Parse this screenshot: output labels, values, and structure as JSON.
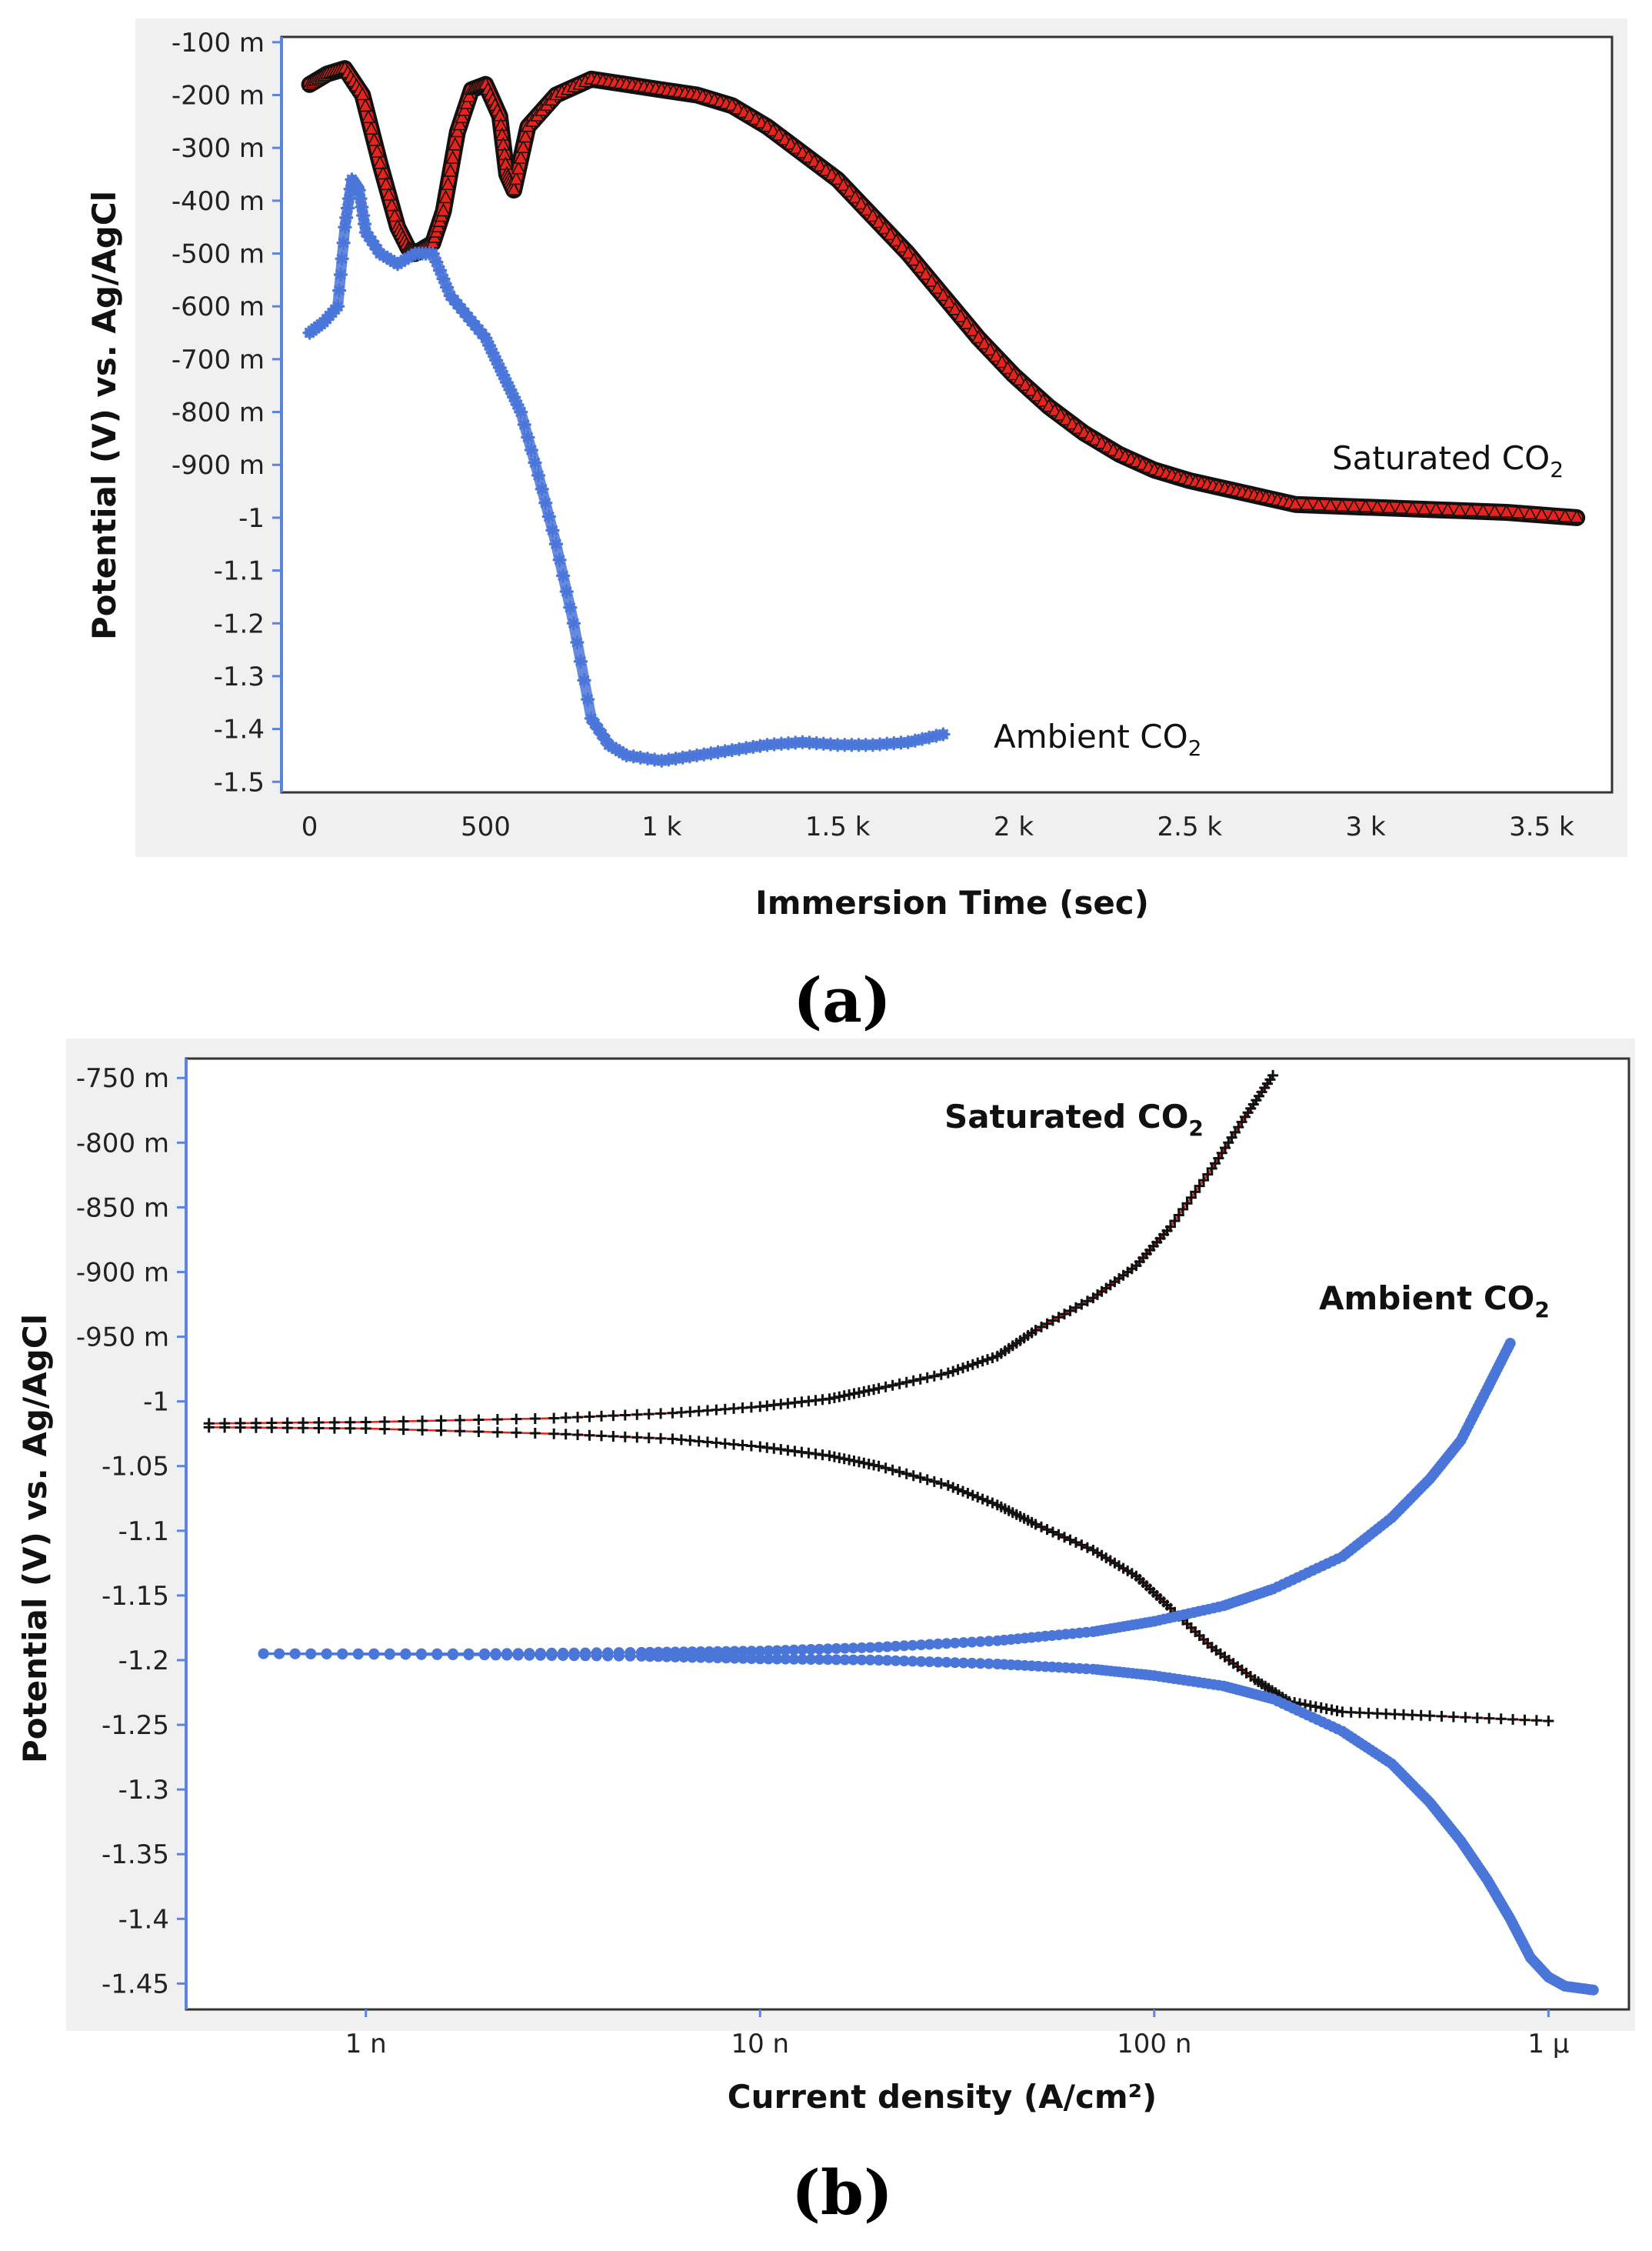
{
  "chart_data": [
    {
      "type": "line",
      "panel_label": "a",
      "panel_label_paren_open": "(",
      "panel_label_paren_close": ")",
      "xlabel": "Immersion Time (sec)",
      "ylabel": "Potential (V) vs. Ag/AgCl",
      "xlim": [
        -80,
        3700
      ],
      "ylim": [
        -1.52,
        -0.09
      ],
      "x_ticks": [
        0,
        500,
        1000,
        1500,
        2000,
        2500,
        3000,
        3500
      ],
      "x_tick_labels": [
        "0",
        "500",
        "1 k",
        "1.5 k",
        "2 k",
        "2.5 k",
        "3 k",
        "3.5 k"
      ],
      "y_ticks": [
        -0.1,
        -0.2,
        -0.3,
        -0.4,
        -0.5,
        -0.6,
        -0.7,
        -0.8,
        -0.9,
        -1.0,
        -1.1,
        -1.2,
        -1.3,
        -1.4,
        -1.5
      ],
      "y_tick_labels": [
        "-100 m",
        "-200 m",
        "-300 m",
        "-400 m",
        "-500 m",
        "-600 m",
        "-700 m",
        "-800 m",
        "-900 m",
        "-1",
        "-1.1",
        "-1.2",
        "-1.3",
        "-1.4",
        "-1.5"
      ],
      "series": [
        {
          "name": "Saturated CO2",
          "label_text": "Saturated CO",
          "label_sub": "2",
          "color": "#e8231b",
          "outline": "#111111",
          "x": [
            0,
            50,
            100,
            150,
            200,
            250,
            280,
            300,
            350,
            380,
            420,
            460,
            500,
            540,
            560,
            580,
            620,
            700,
            800,
            900,
            1000,
            1100,
            1200,
            1300,
            1400,
            1500,
            1600,
            1700,
            1800,
            1900,
            2000,
            2100,
            2200,
            2300,
            2400,
            2500,
            2600,
            2700,
            2800,
            3000,
            3200,
            3400,
            3600
          ],
          "values": [
            -0.18,
            -0.16,
            -0.15,
            -0.2,
            -0.33,
            -0.45,
            -0.49,
            -0.5,
            -0.48,
            -0.42,
            -0.27,
            -0.19,
            -0.18,
            -0.24,
            -0.35,
            -0.38,
            -0.26,
            -0.2,
            -0.17,
            -0.18,
            -0.19,
            -0.2,
            -0.22,
            -0.26,
            -0.31,
            -0.36,
            -0.43,
            -0.5,
            -0.58,
            -0.66,
            -0.73,
            -0.79,
            -0.84,
            -0.88,
            -0.91,
            -0.93,
            -0.945,
            -0.96,
            -0.975,
            -0.98,
            -0.985,
            -0.99,
            -1.0
          ]
        },
        {
          "name": "Ambient CO2",
          "label_text": "Ambient CO",
          "label_sub": "2",
          "color": "#4a76d9",
          "x": [
            0,
            40,
            80,
            100,
            120,
            140,
            160,
            200,
            250,
            300,
            350,
            400,
            450,
            500,
            550,
            600,
            650,
            700,
            750,
            800,
            850,
            900,
            1000,
            1100,
            1200,
            1300,
            1400,
            1500,
            1600,
            1700,
            1800
          ],
          "values": [
            -0.65,
            -0.63,
            -0.6,
            -0.45,
            -0.36,
            -0.38,
            -0.46,
            -0.5,
            -0.52,
            -0.5,
            -0.5,
            -0.58,
            -0.62,
            -0.66,
            -0.73,
            -0.8,
            -0.92,
            -1.05,
            -1.2,
            -1.38,
            -1.43,
            -1.45,
            -1.46,
            -1.45,
            -1.44,
            -1.43,
            -1.425,
            -1.43,
            -1.43,
            -1.425,
            -1.41
          ]
        }
      ]
    },
    {
      "type": "line",
      "panel_label": "b",
      "panel_label_paren_open": "(",
      "panel_label_paren_close": ")",
      "xlabel": "Current density (A/cm²)",
      "ylabel": "Potential (V) vs. Ag/AgCl",
      "x_scale": "log",
      "xlim": [
        3.5e-10,
        1.6e-06
      ],
      "ylim": [
        -1.47,
        -0.735
      ],
      "x_ticks": [
        1e-09,
        1e-08,
        1e-07,
        1e-06
      ],
      "x_tick_labels": [
        "1 n",
        "10 n",
        "100 n",
        "1 µ"
      ],
      "y_ticks": [
        -0.75,
        -0.8,
        -0.85,
        -0.9,
        -0.95,
        -1.0,
        -1.05,
        -1.1,
        -1.15,
        -1.2,
        -1.25,
        -1.3,
        -1.35,
        -1.4,
        -1.45
      ],
      "y_tick_labels": [
        "-750 m",
        "-800 m",
        "-850 m",
        "-900 m",
        "-950 m",
        "-1",
        "-1.05",
        "-1.1",
        "-1.15",
        "-1.2",
        "-1.25",
        "-1.3",
        "-1.35",
        "-1.4",
        "-1.45"
      ],
      "series": [
        {
          "name": "Saturated CO2 anodic",
          "label_text": "Saturated CO",
          "label_sub": "2",
          "color": "#111111",
          "line_color": "#e8231b",
          "x": [
            4e-10,
            1e-09,
            3e-09,
            6e-09,
            1e-08,
            1.5e-08,
            2e-08,
            3e-08,
            4e-08,
            5e-08,
            7e-08,
            9e-08,
            1.1e-07,
            1.4e-07,
            1.7e-07,
            2e-07
          ],
          "values": [
            -1.017,
            -1.016,
            -1.013,
            -1.009,
            -1.004,
            -0.998,
            -0.99,
            -0.978,
            -0.965,
            -0.945,
            -0.92,
            -0.895,
            -0.865,
            -0.82,
            -0.78,
            -0.748
          ]
        },
        {
          "name": "Saturated CO2 cathodic",
          "color": "#111111",
          "line_color": "#e8231b",
          "x": [
            4e-10,
            1e-09,
            3e-09,
            6e-09,
            1e-08,
            1.5e-08,
            2e-08,
            3e-08,
            4e-08,
            5e-08,
            7e-08,
            9e-08,
            1.1e-07,
            1.4e-07,
            1.8e-07,
            2.2e-07,
            3e-07,
            5e-07,
            1e-06
          ],
          "values": [
            -1.02,
            -1.021,
            -1.025,
            -1.029,
            -1.035,
            -1.042,
            -1.05,
            -1.065,
            -1.08,
            -1.095,
            -1.115,
            -1.135,
            -1.16,
            -1.19,
            -1.215,
            -1.232,
            -1.24,
            -1.243,
            -1.247
          ]
        },
        {
          "name": "Ambient CO2 anodic",
          "label_text": "Ambient CO",
          "label_sub": "2",
          "color": "#4a76d9",
          "x": [
            5.5e-10,
            2e-09,
            5e-09,
            1e-08,
            2e-08,
            4e-08,
            7e-08,
            1e-07,
            1.5e-07,
            2e-07,
            3e-07,
            4e-07,
            5e-07,
            6e-07,
            7e-07,
            8e-07
          ],
          "values": [
            -1.195,
            -1.195,
            -1.194,
            -1.193,
            -1.19,
            -1.185,
            -1.178,
            -1.17,
            -1.158,
            -1.145,
            -1.12,
            -1.09,
            -1.06,
            -1.03,
            -0.99,
            -0.955
          ]
        },
        {
          "name": "Ambient CO2 cathodic",
          "color": "#4a76d9",
          "x": [
            5.5e-10,
            2e-09,
            5e-09,
            1e-08,
            2e-08,
            4e-08,
            7e-08,
            1e-07,
            1.5e-07,
            2e-07,
            3e-07,
            4e-07,
            5e-07,
            6e-07,
            7e-07,
            8e-07,
            9e-07,
            1e-06,
            1.1e-06,
            1.3e-06
          ],
          "values": [
            -1.195,
            -1.196,
            -1.197,
            -1.199,
            -1.2,
            -1.203,
            -1.207,
            -1.212,
            -1.22,
            -1.23,
            -1.255,
            -1.28,
            -1.31,
            -1.34,
            -1.37,
            -1.4,
            -1.43,
            -1.445,
            -1.452,
            -1.455
          ]
        }
      ]
    }
  ]
}
